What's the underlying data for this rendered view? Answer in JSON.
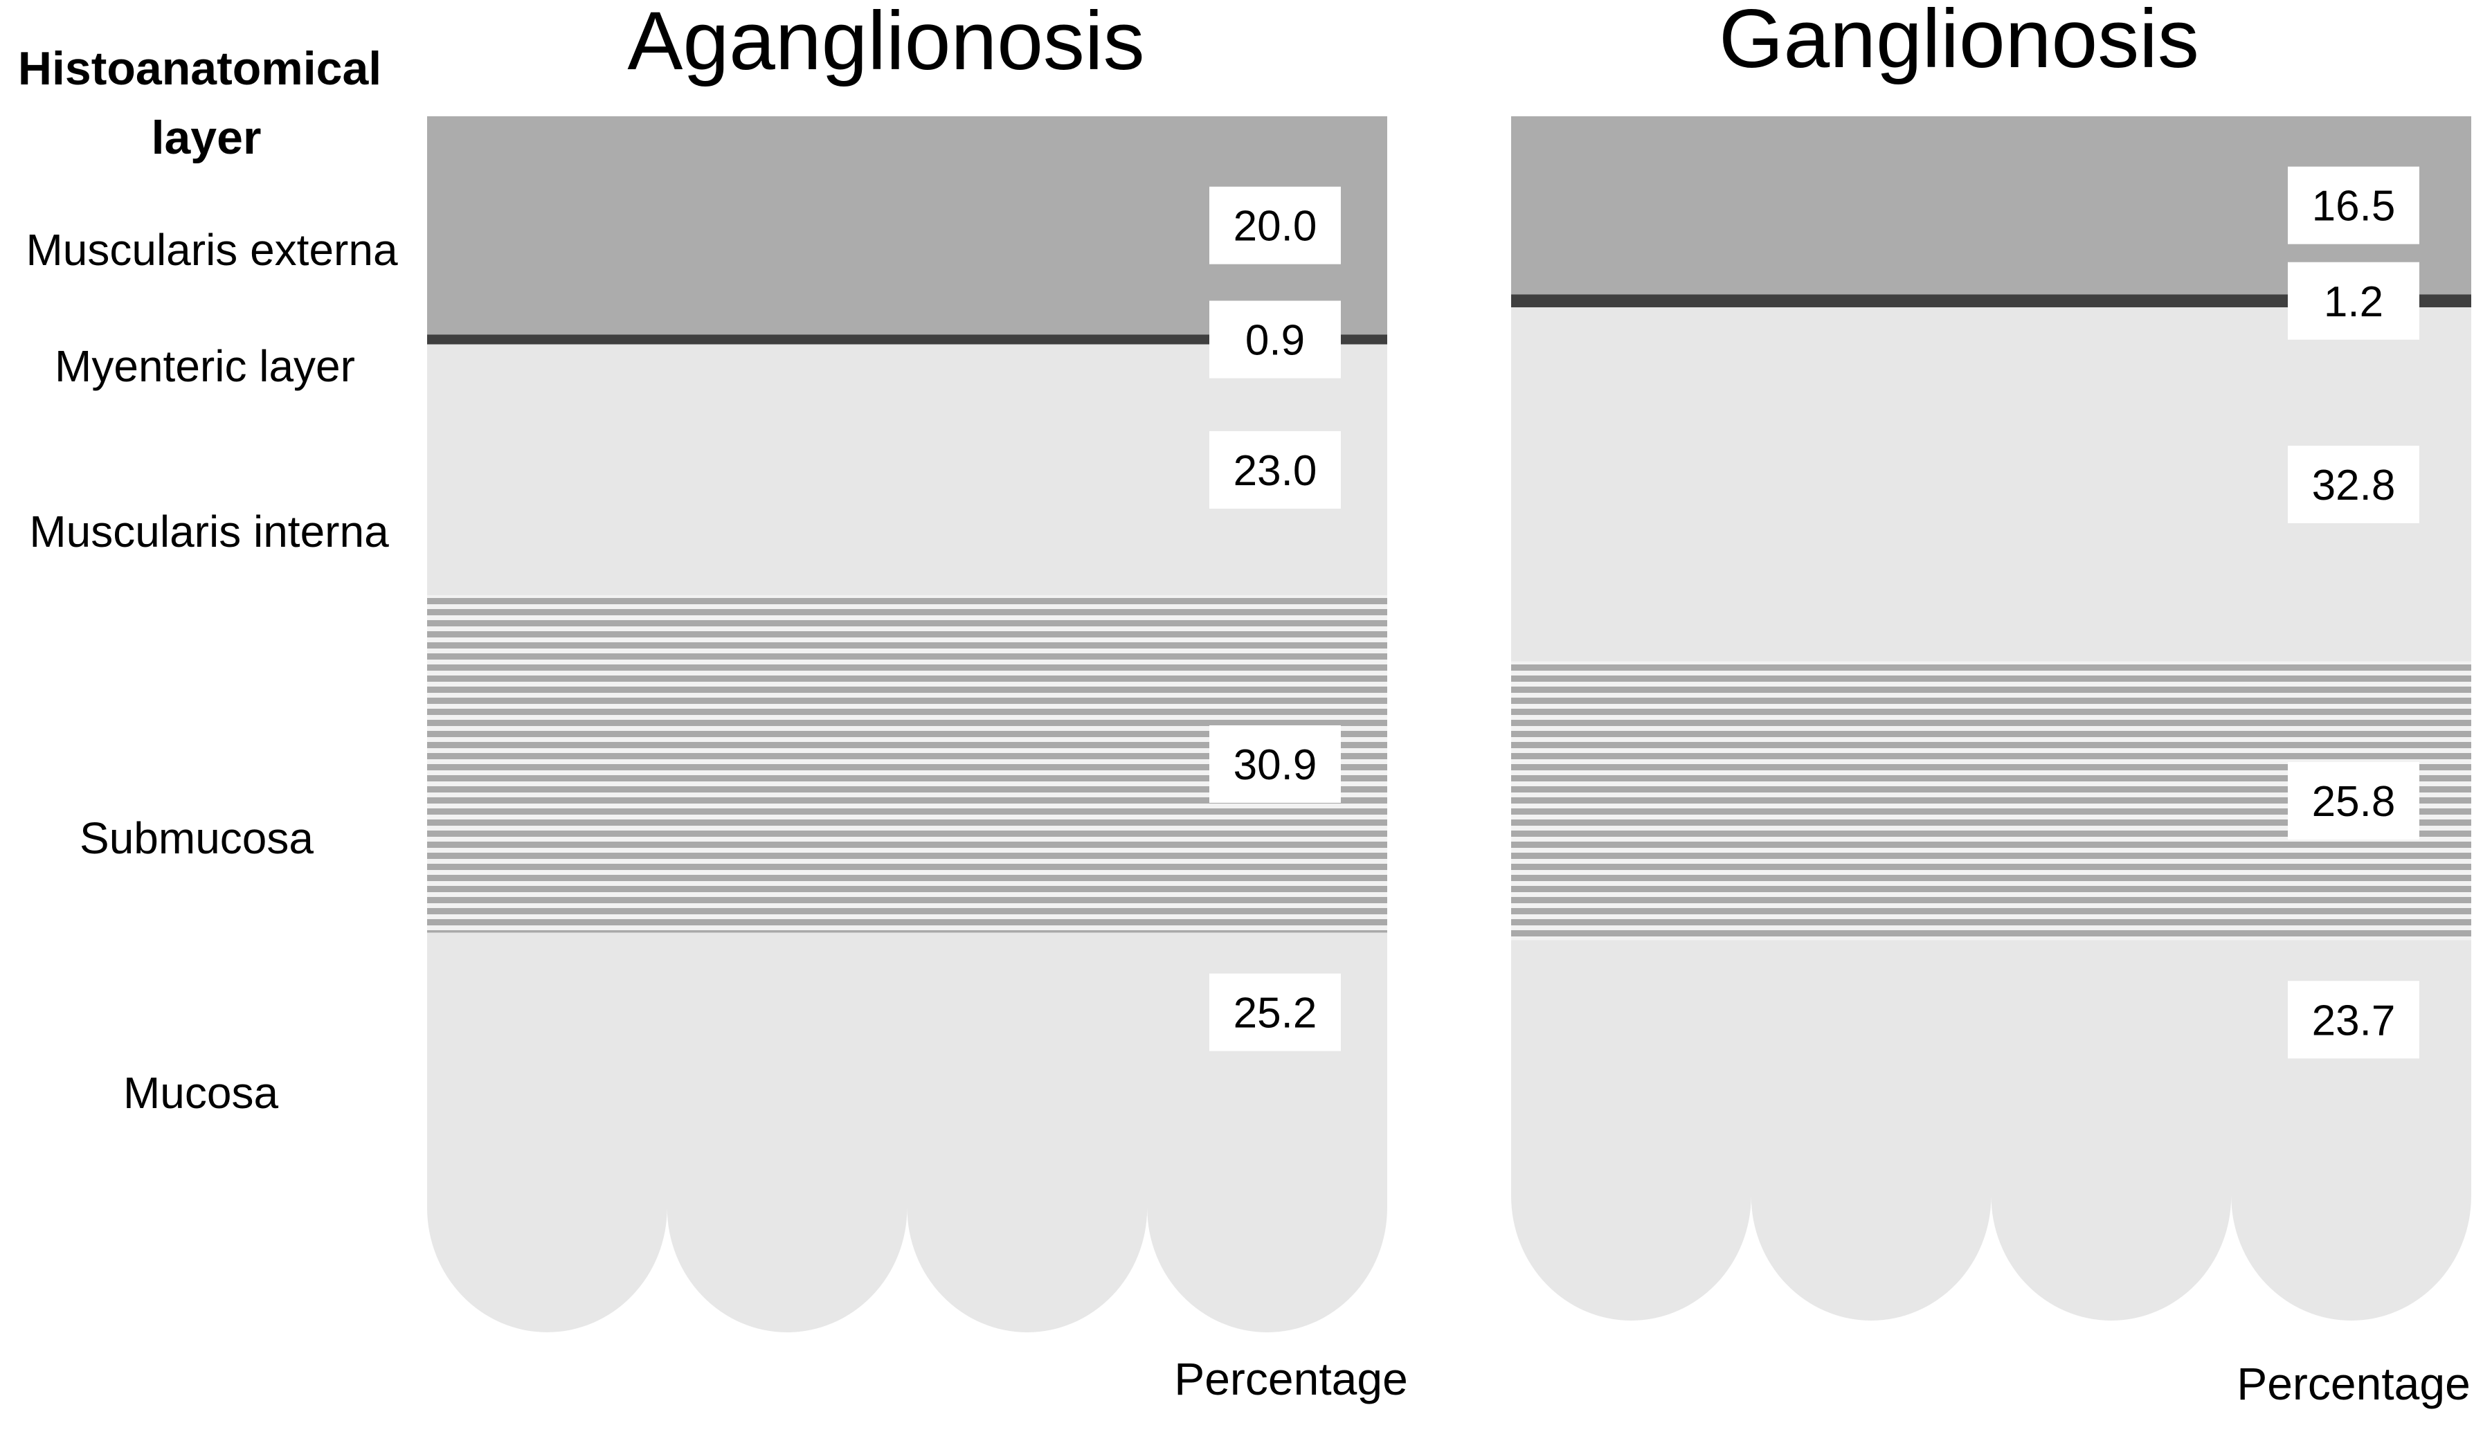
{
  "chart_data": {
    "type": "stacked-bar",
    "row_header": "Histoanatomical layer",
    "layers": [
      "Muscularis externa",
      "Myenteric layer",
      "Muscularis interna",
      "Submucosa",
      "Mucosa"
    ],
    "value_label": "Percentage",
    "series": [
      {
        "name": "Aganglionosis",
        "values": [
          20.0,
          0.9,
          23.0,
          30.9,
          25.2
        ],
        "value_labels": [
          "20.0",
          "0.9",
          "23.0",
          "30.9",
          "25.2"
        ]
      },
      {
        "name": "Ganglionosis",
        "values": [
          16.5,
          1.2,
          32.8,
          25.8,
          23.7
        ],
        "value_labels": [
          "16.5",
          "1.2",
          "32.8",
          "25.8",
          "23.7"
        ]
      }
    ]
  },
  "colors": {
    "muscularis_externa": "#acacac",
    "myenteric_layer": "#3f3f3f",
    "muscularis_interna": "#e7e7e7",
    "submucosa_stripe": "#a9a9a9",
    "submucosa_gap": "#f2f2f2",
    "mucosa": "#e7e7e7",
    "label_box": "#ffffff"
  }
}
